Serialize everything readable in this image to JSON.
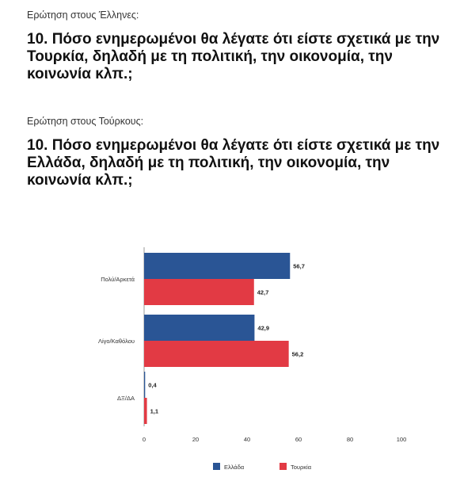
{
  "questions": [
    {
      "label": "Ερώτηση στους Έλληνες:",
      "text": "10. Πόσο ενημερωμένοι θα λέγατε ότι είστε σχετικά με την Τουρκία, δηλαδή με τη πολιτική, την οικονομία, την κοινωνία κλπ.;"
    },
    {
      "label": "Ερώτηση στους Τούρκους:",
      "text": "10. Πόσο ενημερωμένοι θα λέγατε ότι είστε σχετικά με την Ελλάδα, δηλαδή με τη πολιτική, την οικονομία, την κοινωνία κλπ.;"
    }
  ],
  "chart_data": {
    "type": "bar",
    "orientation": "horizontal",
    "categories": [
      "Πολύ/Αρκετά",
      "Λίγο/Καθόλου",
      "ΔΞ/ΔΑ"
    ],
    "series": [
      {
        "name": "Ελλάδα",
        "values": [
          56.7,
          42.9,
          0.4
        ],
        "labels": [
          "56,7",
          "42,9",
          "0,4"
        ],
        "color": "#2a5595"
      },
      {
        "name": "Τουρκία",
        "values": [
          42.7,
          56.2,
          1.1
        ],
        "labels": [
          "42,7",
          "56,2",
          "1,1"
        ],
        "color": "#e23a44"
      }
    ],
    "xlim": [
      0,
      100
    ],
    "xticks": [
      0,
      20,
      40,
      60,
      80,
      100
    ],
    "legend_position": "bottom",
    "grid": false
  }
}
